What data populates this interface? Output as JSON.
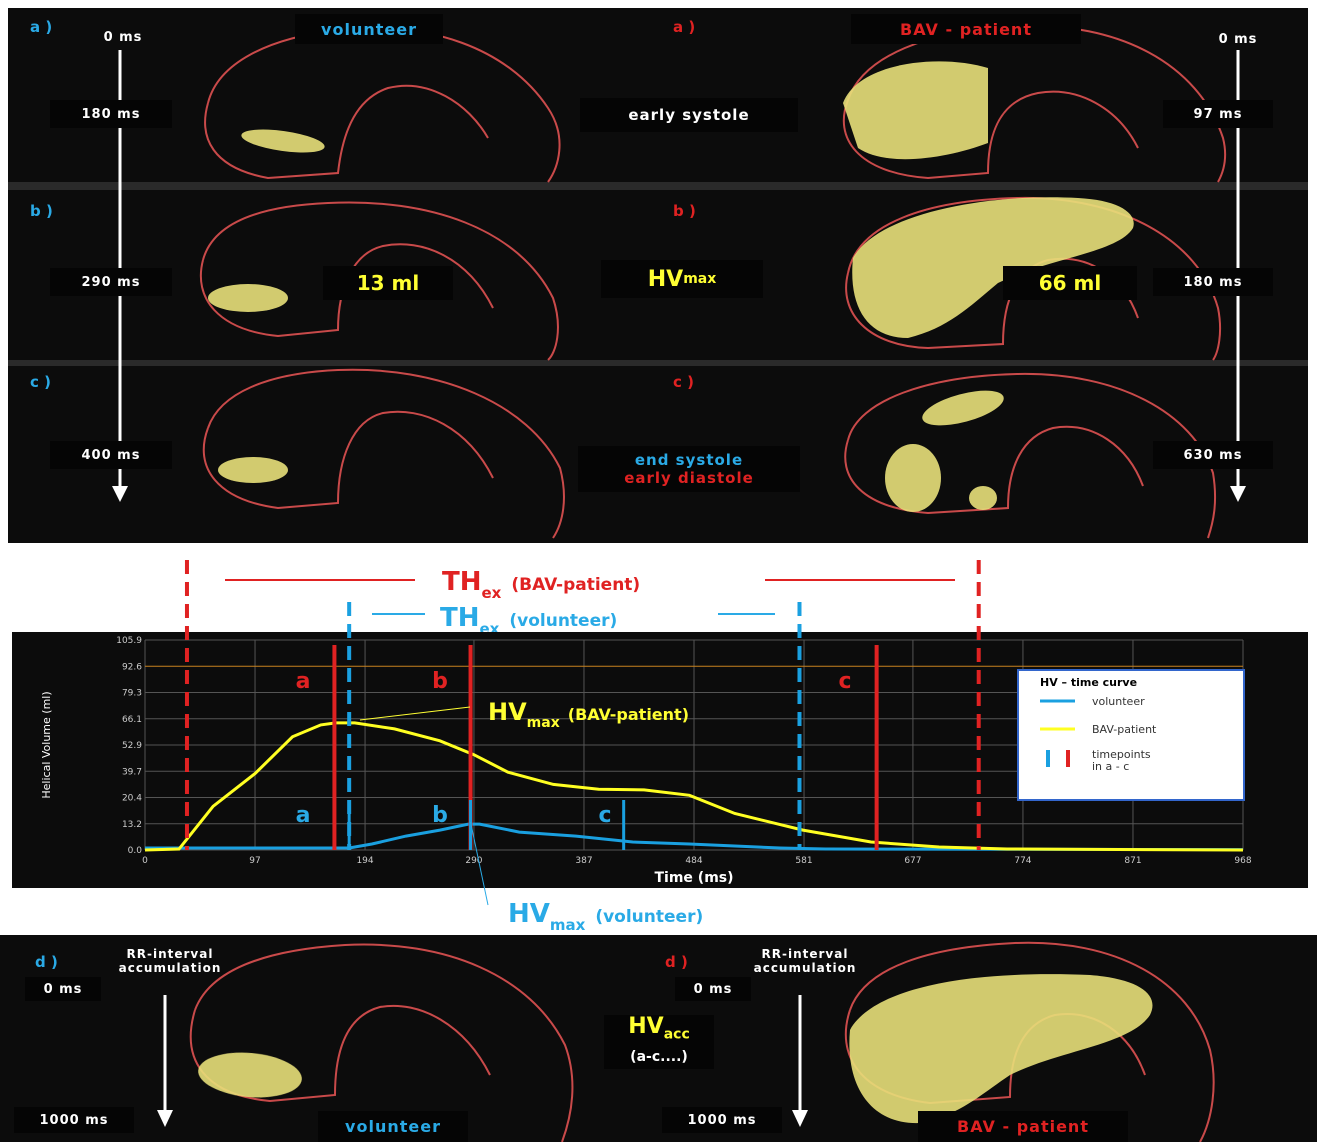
{
  "top": {
    "left_tags": [
      "a )",
      "b )",
      "c )"
    ],
    "right_tags": [
      "a )",
      "b )",
      "c )"
    ],
    "volunteer_title": "volunteer",
    "patient_title": "BAV - patient",
    "left_times": [
      "0 ms",
      "180 ms",
      "290 ms",
      "400 ms"
    ],
    "right_times": [
      "0 ms",
      "97 ms",
      "180 ms",
      "630 ms"
    ],
    "early_systole": "early systole",
    "hv_main": "HV",
    "hv_sub": "max",
    "vol_13": "13 ml",
    "vol_66": "66 ml",
    "end_systole": "end systole",
    "early_diastole": "early diastole"
  },
  "middle": {
    "th_bav_main": "TH",
    "th_bav_sub": "ex",
    "th_bav_rest": "(BAV-patient)",
    "th_vol_main": "TH",
    "th_vol_sub": "ex",
    "th_vol_rest": "(volunteer)",
    "hvmax_vol_main": "HV",
    "hvmax_vol_sub": "max",
    "hvmax_vol_rest": "(volunteer)"
  },
  "chart_data": {
    "type": "line",
    "ylabel": "Helical Volume (ml)",
    "xlabel": "Time (ms)",
    "x_ticks": [
      "0",
      "97",
      "194",
      "290",
      "387",
      "484",
      "581",
      "677",
      "774",
      "871",
      "968"
    ],
    "y_ticks": [
      "0.0",
      "13.2",
      "20.4",
      "39.7",
      "52.9",
      "66.1",
      "79.3",
      "92.6",
      "105.9"
    ],
    "xlim": [
      0,
      968
    ],
    "ylim": [
      0,
      105.9
    ],
    "annotations": {
      "red_a": "a",
      "red_b": "b",
      "red_c": "c",
      "blue_a": "a",
      "blue_b": "b",
      "blue_c": "c",
      "hvmax_bav_main": "HV",
      "hvmax_bav_sub": "max",
      "hvmax_bav_rest": "(BAV-patient)"
    },
    "legend": {
      "title": "HV – time curve",
      "items": [
        "volunteer",
        "BAV-patient",
        "timepoints in a - c"
      ]
    },
    "series": [
      {
        "name": "volunteer",
        "color": "#1aa0e0",
        "points": [
          [
            0,
            1
          ],
          [
            150,
            1
          ],
          [
            168,
            1
          ],
          [
            180,
            1
          ],
          [
            200,
            3
          ],
          [
            230,
            7
          ],
          [
            260,
            10
          ],
          [
            285,
            13
          ],
          [
            295,
            13
          ],
          [
            330,
            9
          ],
          [
            380,
            7
          ],
          [
            430,
            4
          ],
          [
            480,
            3
          ],
          [
            520,
            2
          ],
          [
            560,
            1
          ],
          [
            600,
            0.5
          ],
          [
            968,
            0.2
          ]
        ]
      },
      {
        "name": "BAV-patient",
        "color": "#ffff22",
        "points": [
          [
            0,
            0
          ],
          [
            30,
            0.5
          ],
          [
            60,
            18
          ],
          [
            97,
            38
          ],
          [
            130,
            57
          ],
          [
            155,
            63
          ],
          [
            168,
            64
          ],
          [
            185,
            64
          ],
          [
            220,
            61
          ],
          [
            260,
            55
          ],
          [
            290,
            48
          ],
          [
            320,
            39
          ],
          [
            360,
            30
          ],
          [
            400,
            26.5
          ],
          [
            440,
            26
          ],
          [
            480,
            22
          ],
          [
            520,
            16
          ],
          [
            580,
            10
          ],
          [
            640,
            4
          ],
          [
            700,
            1.5
          ],
          [
            760,
            0.5
          ],
          [
            968,
            0
          ]
        ]
      }
    ],
    "red_markers": [
      [
        167,
        "a"
      ],
      [
        287,
        "b"
      ],
      [
        645,
        "c"
      ]
    ],
    "blue_markers": [
      [
        180,
        "a"
      ],
      [
        287,
        "b"
      ],
      [
        422,
        "c"
      ]
    ],
    "th_bav_dashes": [
      37,
      735
    ],
    "th_vol_dashes": [
      180,
      577
    ]
  },
  "bottom": {
    "rr_left": "RR-interval accumulation",
    "rr_right": "RR-interval accumulation",
    "left_tag": "d )",
    "right_tag": "d )",
    "left_0": "0 ms",
    "left_1000": "1000 ms",
    "right_0": "0 ms",
    "right_1000": "1000 ms",
    "hv_acc_main": "HV",
    "hv_acc_sub": "acc",
    "hv_acc_rest": "(a-c....)",
    "volunteer": "volunteer",
    "patient": "BAV - patient"
  }
}
